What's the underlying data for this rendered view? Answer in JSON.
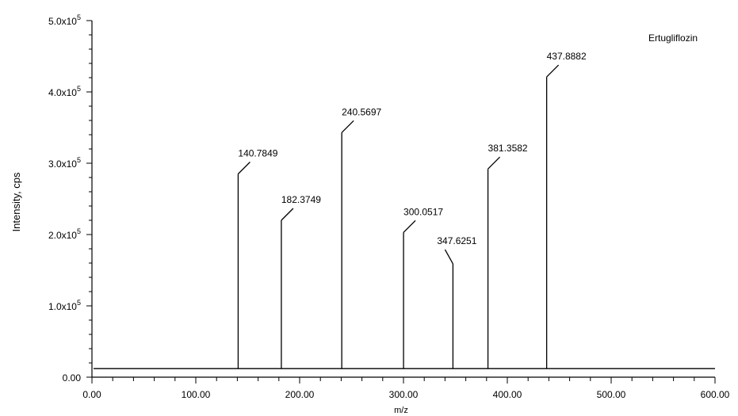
{
  "chart_data": {
    "type": "line",
    "annotation": "Ertugliflozin",
    "xlabel": "m/z",
    "ylabel": "Intensity, cps",
    "xlim": [
      0,
      600
    ],
    "ylim": [
      0,
      500000
    ],
    "baseline": 12000,
    "x_ticks": [
      "0.00",
      "100.00",
      "200.00",
      "300.00",
      "400.00",
      "500.00",
      "600.00"
    ],
    "x_tick_values": [
      0,
      100,
      200,
      300,
      400,
      500,
      600
    ],
    "y_ticks": [
      {
        "value": 0,
        "mantissa": "0.00",
        "exp": ""
      },
      {
        "value": 100000,
        "mantissa": "1.0x10",
        "exp": "5"
      },
      {
        "value": 200000,
        "mantissa": "2.0x10",
        "exp": "5"
      },
      {
        "value": 300000,
        "mantissa": "3.0x10",
        "exp": "5"
      },
      {
        "value": 400000,
        "mantissa": "4.0x10",
        "exp": "5"
      },
      {
        "value": 500000,
        "mantissa": "5.0x10",
        "exp": "5"
      }
    ],
    "peaks": [
      {
        "x": 140.7849,
        "y": 285000,
        "label": "140.7849"
      },
      {
        "x": 182.3749,
        "y": 220000,
        "label": "182.3749"
      },
      {
        "x": 240.5697,
        "y": 343000,
        "label": "240.5697"
      },
      {
        "x": 300.0517,
        "y": 203000,
        "label": "300.0517"
      },
      {
        "x": 347.6251,
        "y": 159000,
        "label": "347.6251"
      },
      {
        "x": 381.3582,
        "y": 292000,
        "label": "381.3582"
      },
      {
        "x": 437.8882,
        "y": 421000,
        "label": "437.8882"
      }
    ]
  }
}
